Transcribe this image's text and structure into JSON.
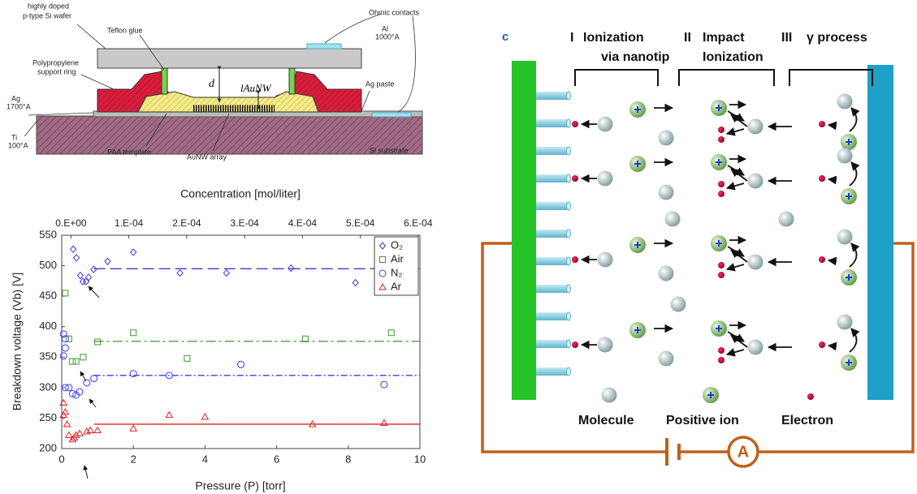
{
  "device_diagram": {
    "labels": {
      "wafer": [
        "highly doped",
        "p-type Si wafer"
      ],
      "glue": "Teflon glue",
      "contacts": "Ohmic contacts",
      "al": [
        "Al",
        "1000°A"
      ],
      "ring": [
        "Polypropylene",
        "support ring"
      ],
      "gap": "d",
      "length": "lAuNW",
      "paste": "Ag paste",
      "ag": [
        "Ag",
        "1700°A"
      ],
      "ti": [
        "Ti",
        "100°A"
      ],
      "template": "PAA template",
      "array": "AuNW array",
      "substrate": "Si substrate"
    }
  },
  "chart_data": {
    "type": "scatter",
    "xlabel": "Pressure (P) [torr]",
    "ylabel": "Breakdown voltage (Vb) [V]",
    "x2label": "Concentration [mol/liter]",
    "xlim": [
      0,
      10
    ],
    "xticks": [
      0,
      2,
      4,
      6,
      8,
      10
    ],
    "ylim": [
      200,
      550
    ],
    "yticks": [
      200,
      250,
      300,
      350,
      400,
      450,
      500,
      550
    ],
    "x2lim": [
      -1.6e-05,
      0.000603
    ],
    "x2ticks": [
      {
        "value": 0,
        "label": "0.E+00"
      },
      {
        "value": 0.0001,
        "label": "1.E-04"
      },
      {
        "value": 0.0002,
        "label": "2.E-04"
      },
      {
        "value": 0.0003,
        "label": "3.E-04"
      },
      {
        "value": 0.0004,
        "label": "4.E-04"
      },
      {
        "value": 0.0005,
        "label": "5.E-04"
      },
      {
        "value": 0.0006,
        "label": "6.E-04"
      }
    ],
    "legend": "upper right",
    "series": [
      {
        "name": "O₂",
        "color": "#3b3bd6",
        "marker": "diamond",
        "x": [
          0.32,
          0.41,
          0.52,
          0.59,
          0.68,
          0.75,
          0.89,
          1.28,
          2.0,
          3.3,
          4.6,
          6.4,
          8.2
        ],
        "values": [
          527,
          513,
          484,
          474,
          474,
          481,
          494,
          507,
          522,
          488,
          488,
          496,
          472
        ],
        "fit_x": [
          0.9,
          10
        ],
        "fit_y": 495,
        "dash": "14 6"
      },
      {
        "name": "Air",
        "color": "#3d9a2c",
        "marker": "square",
        "x": [
          0.1,
          0.2,
          0.3,
          0.4,
          0.6,
          1.0,
          2.0,
          3.5,
          6.8,
          9.2
        ],
        "values": [
          455,
          380,
          343,
          343,
          350,
          375,
          390,
          348,
          380,
          390
        ],
        "fit_x": [
          0.9,
          10
        ],
        "fit_y": 376,
        "dash": "12 4 3 4"
      },
      {
        "name": "N₂",
        "color": "#3b3bf0",
        "marker": "circle",
        "x": [
          0.05,
          0.1,
          0.05,
          0.1,
          0.1,
          0.2,
          0.3,
          0.4,
          0.5,
          0.7,
          0.9,
          2.0,
          3.0,
          5.0,
          9.0
        ],
        "values": [
          388,
          380,
          352,
          365,
          300,
          300,
          290,
          288,
          293,
          308,
          315,
          323,
          320,
          338,
          305
        ],
        "fit_x": [
          0.9,
          10
        ],
        "fit_y": 320,
        "dash": "8 3 2 3"
      },
      {
        "name": "Ar",
        "color": "#e02020",
        "marker": "triangle",
        "x": [
          0.05,
          0.1,
          0.05,
          0.15,
          0.2,
          0.3,
          0.35,
          0.4,
          0.5,
          0.7,
          0.8,
          1.0,
          2.0,
          3.0,
          4.0,
          7.0,
          9.0
        ],
        "values": [
          275,
          260,
          255,
          240,
          222,
          215,
          218,
          222,
          225,
          228,
          230,
          230,
          233,
          255,
          252,
          240,
          242
        ],
        "fit_x": [
          0.9,
          10
        ],
        "fit_y": 240,
        "dash": ""
      }
    ]
  },
  "process_diagram": {
    "panel_label": "c",
    "stages": [
      {
        "numeral": "I",
        "lines": [
          "Ionization",
          "via nanotip"
        ]
      },
      {
        "numeral": "II",
        "lines": [
          "Impact",
          "Ionization"
        ]
      },
      {
        "numeral": "III",
        "lines": [
          "γ process"
        ]
      }
    ],
    "legend": [
      "Molecule",
      "Positive ion",
      "Electron"
    ],
    "meter": "A"
  }
}
